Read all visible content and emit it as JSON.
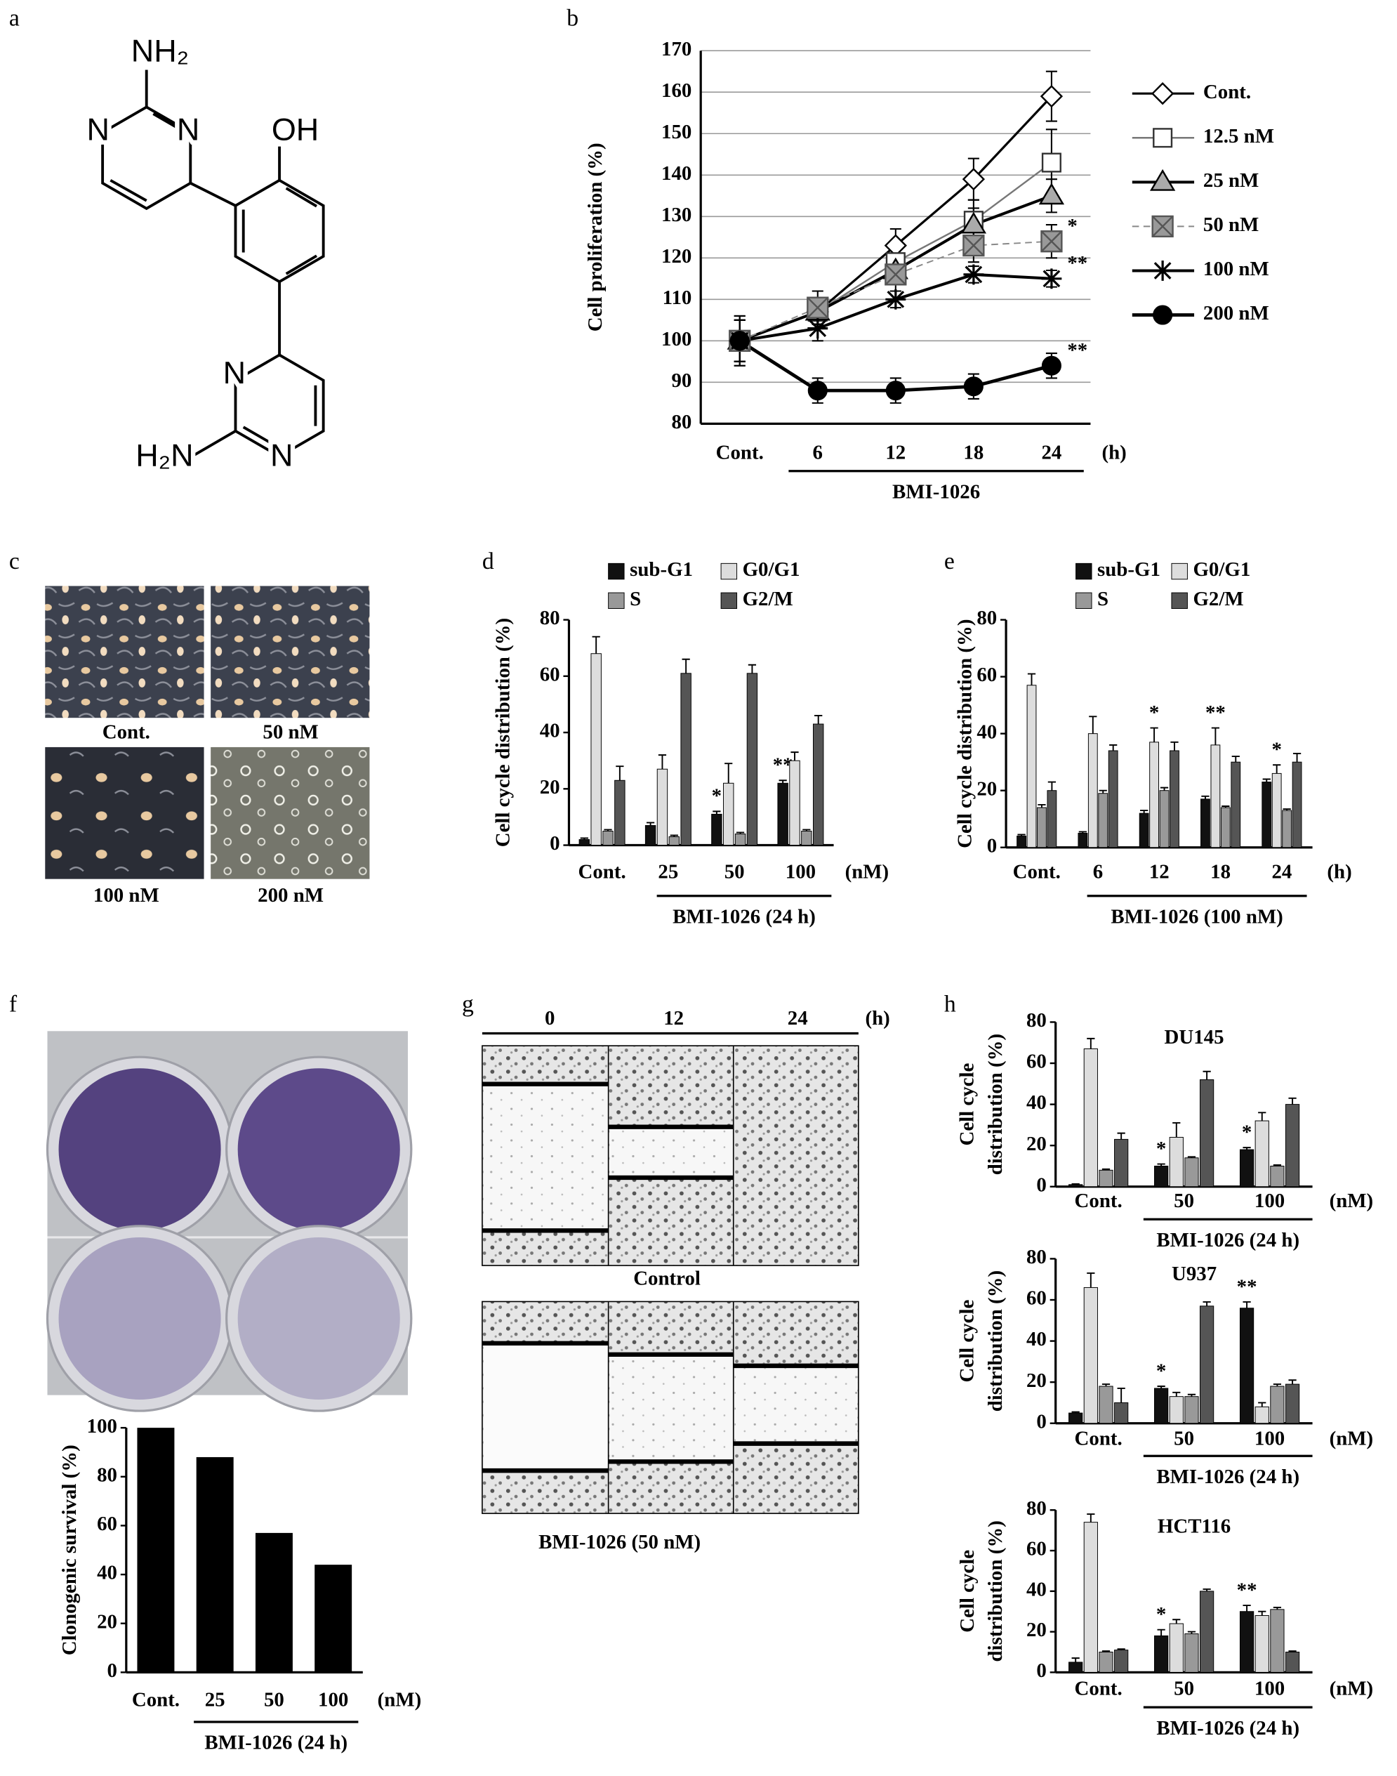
{
  "panel_labels": [
    "a",
    "b",
    "c",
    "d",
    "e",
    "f",
    "g",
    "h"
  ],
  "molecule": {
    "labels": [
      "NH₂",
      "N",
      "N",
      "OH",
      "N",
      "H₂N",
      "N"
    ]
  },
  "photos": {
    "labels": [
      "Cont.",
      "50 nM",
      "100 nM",
      "200 nM"
    ]
  },
  "wound_assay": {
    "time_labels": [
      "0",
      "12",
      "24"
    ],
    "unit": "(h)",
    "rows": [
      "Control",
      "BMI-1026 (50 nM)"
    ]
  },
  "chart_data": [
    {
      "type": "line",
      "ylabel": "Cell proliferation (%)",
      "categories": [
        "Cont.",
        "6",
        "12",
        "18",
        "24"
      ],
      "x_unit": "(h)",
      "group_label": "BMI-1026",
      "ylim": [
        80,
        170
      ],
      "yticks": [
        80,
        90,
        100,
        110,
        120,
        130,
        140,
        150,
        160,
        170
      ],
      "grid": true,
      "legend": true,
      "series": [
        {
          "name": "Cont.",
          "color": "#000000",
          "marker": "diamond",
          "marker_fill": "#ffffff",
          "line_width": 2,
          "dash": false,
          "values": [
            100,
            107,
            123,
            139,
            159
          ],
          "errors": [
            6,
            3,
            4,
            5,
            6
          ],
          "significance": [
            null,
            null,
            null,
            null,
            null
          ]
        },
        {
          "name": "12.5 nM",
          "color": "#777777",
          "marker": "square",
          "marker_fill": "#ffffff",
          "line_width": 1.5,
          "dash": false,
          "values": [
            100,
            107,
            119,
            129,
            143
          ],
          "errors": [
            5,
            3,
            4,
            5,
            8
          ],
          "significance": [
            null,
            null,
            null,
            null,
            null
          ]
        },
        {
          "name": "25 nM",
          "color": "#000000",
          "marker": "triangle",
          "marker_fill": "#aaaaaa",
          "line_width": 2.5,
          "dash": false,
          "values": [
            100,
            107,
            117,
            128,
            135
          ],
          "errors": [
            5,
            3,
            3,
            4,
            4
          ],
          "significance": [
            null,
            null,
            null,
            null,
            null
          ]
        },
        {
          "name": "50 nM",
          "color": "#888888",
          "marker": "xsquare",
          "marker_fill": "#999999",
          "line_width": 1.2,
          "dash": true,
          "values": [
            100,
            108,
            116,
            123,
            124
          ],
          "errors": [
            5,
            4,
            4,
            4,
            4
          ],
          "significance": [
            null,
            null,
            null,
            null,
            "*"
          ]
        },
        {
          "name": "100 nM",
          "color": "#000000",
          "marker": "star",
          "marker_fill": "#000000",
          "line_width": 2.5,
          "dash": false,
          "values": [
            100,
            103,
            110,
            116,
            115
          ],
          "errors": [
            5,
            3,
            2,
            2,
            2
          ],
          "significance": [
            null,
            null,
            null,
            null,
            "**"
          ]
        },
        {
          "name": "200 nM",
          "color": "#000000",
          "marker": "circle",
          "marker_fill": "#000000",
          "line_width": 3,
          "dash": false,
          "values": [
            100,
            88,
            88,
            89,
            94
          ],
          "errors": [
            6,
            3,
            3,
            3,
            3
          ],
          "significance": [
            null,
            null,
            null,
            null,
            "**"
          ]
        }
      ]
    },
    {
      "type": "bar",
      "ylabel": "Cell cycle distribution (%)",
      "categories": [
        "Cont.",
        "25",
        "50",
        "100"
      ],
      "x_unit": "(nM)",
      "group_label": "BMI-1026 (24 h)",
      "ylim": [
        0,
        80
      ],
      "yticks": [
        0,
        20,
        40,
        60,
        80
      ],
      "grid": false,
      "legend": true,
      "series": [
        {
          "name": "sub-G1",
          "color": "#111111",
          "values": [
            2,
            7,
            11,
            22
          ],
          "errors": [
            0.5,
            1,
            1,
            1
          ],
          "significance": [
            null,
            null,
            "*",
            "**"
          ]
        },
        {
          "name": "G0/G1",
          "color": "#dddddd",
          "values": [
            68,
            27,
            22,
            30
          ],
          "errors": [
            6,
            5,
            7,
            3
          ],
          "significance": [
            null,
            null,
            null,
            null
          ]
        },
        {
          "name": "S",
          "color": "#999999",
          "values": [
            5,
            3,
            4,
            5
          ],
          "errors": [
            0.5,
            0.5,
            0.5,
            0.5
          ],
          "significance": [
            null,
            null,
            null,
            null
          ]
        },
        {
          "name": "G2/M",
          "color": "#555555",
          "values": [
            23,
            61,
            61,
            43
          ],
          "errors": [
            5,
            5,
            3,
            3
          ],
          "significance": [
            null,
            null,
            null,
            null
          ]
        }
      ]
    },
    {
      "type": "bar",
      "ylabel": "Cell cycle distribution (%)",
      "categories": [
        "Cont.",
        "6",
        "12",
        "18",
        "24"
      ],
      "x_unit": "(h)",
      "group_label": "BMI-1026 (100 nM)",
      "ylim": [
        0,
        80
      ],
      "yticks": [
        0,
        20,
        40,
        60,
        80
      ],
      "grid": false,
      "legend": true,
      "series": [
        {
          "name": "sub-G1",
          "color": "#111111",
          "values": [
            4,
            5,
            12,
            17,
            23
          ],
          "errors": [
            0.5,
            0.5,
            1,
            1,
            1
          ],
          "significance": [
            null,
            null,
            null,
            null,
            null
          ]
        },
        {
          "name": "G0/G1",
          "color": "#dddddd",
          "values": [
            57,
            40,
            37,
            36,
            26
          ],
          "errors": [
            4,
            6,
            5,
            6,
            3
          ],
          "significance": [
            null,
            null,
            "*",
            "**",
            "*"
          ]
        },
        {
          "name": "S",
          "color": "#999999",
          "values": [
            14,
            19,
            20,
            14,
            13
          ],
          "errors": [
            1,
            1,
            1,
            0.5,
            0.5
          ],
          "significance": [
            null,
            null,
            null,
            null,
            null
          ]
        },
        {
          "name": "G2/M",
          "color": "#555555",
          "values": [
            20,
            34,
            34,
            30,
            30
          ],
          "errors": [
            3,
            2,
            3,
            2,
            3
          ],
          "significance": [
            null,
            null,
            null,
            null,
            null
          ]
        }
      ]
    },
    {
      "type": "bar",
      "ylabel": "Clonogenic survival (%)",
      "categories": [
        "Cont.",
        "25",
        "50",
        "100"
      ],
      "x_unit": "(nM)",
      "group_label": "BMI-1026 (24 h)",
      "ylim": [
        0,
        100
      ],
      "yticks": [
        0,
        20,
        40,
        60,
        80,
        100
      ],
      "grid": false,
      "legend": false,
      "color": "#000000",
      "values": [
        100,
        88,
        57,
        44
      ]
    },
    {
      "type": "bar",
      "title": "DU145",
      "ylabel": [
        "Cell cycle",
        "distribution (%)"
      ],
      "categories": [
        "Cont.",
        "50",
        "100"
      ],
      "x_unit": "(nM)",
      "group_label": "BMI-1026 (24 h)",
      "ylim": [
        0,
        80
      ],
      "yticks": [
        0,
        20,
        40,
        60,
        80
      ],
      "grid": false,
      "legend": false,
      "series": [
        {
          "name": "sub-G1",
          "color": "#111111",
          "values": [
            1,
            10,
            18
          ],
          "errors": [
            0.3,
            1,
            1
          ],
          "significance": [
            null,
            "*",
            "*"
          ]
        },
        {
          "name": "G0/G1",
          "color": "#dddddd",
          "values": [
            67,
            24,
            32
          ],
          "errors": [
            5,
            7,
            4
          ],
          "significance": [
            null,
            null,
            null
          ]
        },
        {
          "name": "S",
          "color": "#999999",
          "values": [
            8,
            14,
            10
          ],
          "errors": [
            0.5,
            0.5,
            0.5
          ],
          "significance": [
            null,
            null,
            null
          ]
        },
        {
          "name": "G2/M",
          "color": "#555555",
          "values": [
            23,
            52,
            40
          ],
          "errors": [
            3,
            4,
            3
          ],
          "significance": [
            null,
            null,
            null
          ]
        }
      ]
    },
    {
      "type": "bar",
      "title": "U937",
      "ylabel": [
        "Cell cycle",
        "distribution (%)"
      ],
      "categories": [
        "Cont.",
        "50",
        "100"
      ],
      "x_unit": "(nM)",
      "group_label": "BMI-1026 (24 h)",
      "ylim": [
        0,
        80
      ],
      "yticks": [
        0,
        20,
        40,
        60,
        80
      ],
      "grid": false,
      "legend": false,
      "series": [
        {
          "name": "sub-G1",
          "color": "#111111",
          "values": [
            5,
            17,
            56
          ],
          "errors": [
            0.5,
            1,
            3
          ],
          "significance": [
            null,
            "*",
            "**"
          ]
        },
        {
          "name": "G0/G1",
          "color": "#dddddd",
          "values": [
            66,
            13,
            8
          ],
          "errors": [
            7,
            2,
            2
          ],
          "significance": [
            null,
            null,
            null
          ]
        },
        {
          "name": "S",
          "color": "#999999",
          "values": [
            18,
            13,
            18
          ],
          "errors": [
            1,
            1,
            1
          ],
          "significance": [
            null,
            null,
            null
          ]
        },
        {
          "name": "G2/M",
          "color": "#555555",
          "values": [
            10,
            57,
            19
          ],
          "errors": [
            7,
            2,
            2
          ],
          "significance": [
            null,
            null,
            null
          ]
        }
      ]
    },
    {
      "type": "bar",
      "title": "HCT116",
      "ylabel": [
        "Cell cycle",
        "distribution (%)"
      ],
      "categories": [
        "Cont.",
        "50",
        "100"
      ],
      "x_unit": "(nM)",
      "group_label": "BMI-1026 (24 h)",
      "ylim": [
        0,
        80
      ],
      "yticks": [
        0,
        20,
        40,
        60,
        80
      ],
      "grid": false,
      "legend": false,
      "series": [
        {
          "name": "sub-G1",
          "color": "#111111",
          "values": [
            5,
            18,
            30
          ],
          "errors": [
            2,
            3,
            3
          ],
          "significance": [
            null,
            "*",
            "**"
          ]
        },
        {
          "name": "G0/G1",
          "color": "#dddddd",
          "values": [
            74,
            24,
            28
          ],
          "errors": [
            4,
            2,
            2
          ],
          "significance": [
            null,
            null,
            null
          ]
        },
        {
          "name": "S",
          "color": "#999999",
          "values": [
            10,
            19,
            31
          ],
          "errors": [
            0.5,
            1,
            1
          ],
          "significance": [
            null,
            null,
            null
          ]
        },
        {
          "name": "G2/M",
          "color": "#555555",
          "values": [
            11,
            40,
            10
          ],
          "errors": [
            0.5,
            1,
            0.5
          ],
          "significance": [
            null,
            null,
            null
          ]
        }
      ]
    }
  ]
}
